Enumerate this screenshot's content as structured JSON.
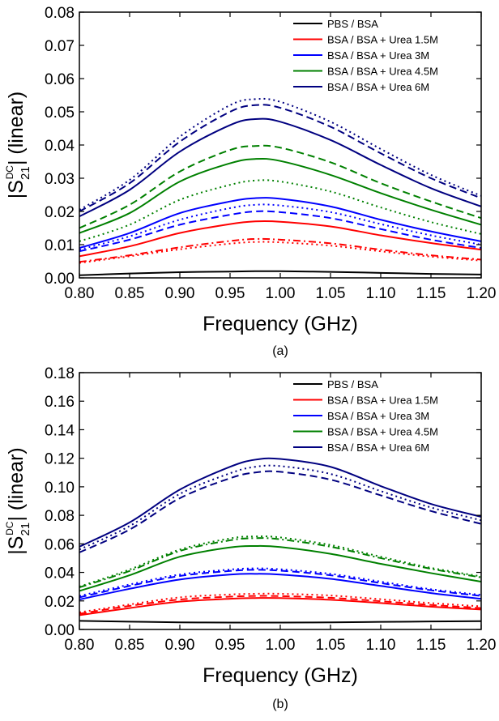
{
  "chart_data": [
    {
      "type": "line",
      "panel_label": "(a)",
      "title": "",
      "xlabel": "Frequency (GHz)",
      "ylabel": "|S21DC| (linear)",
      "ylabel_parts": {
        "pre": "|S",
        "sub": "21",
        "sup": "DC",
        "post": "| (linear)"
      },
      "xlim": [
        0.8,
        1.2
      ],
      "ylim": [
        0.0,
        0.08
      ],
      "x_ticks": [
        "0.80",
        "0.85",
        "0.90",
        "0.95",
        "1.00",
        "1.05",
        "1.10",
        "1.15",
        "1.20"
      ],
      "y_ticks": [
        "0.00",
        "0.01",
        "0.02",
        "0.03",
        "0.04",
        "0.05",
        "0.06",
        "0.07",
        "0.08"
      ],
      "grid": false,
      "legend_position": "top-right",
      "legend": [
        {
          "label": "PBS / BSA",
          "color": "#000000"
        },
        {
          "label": "BSA / BSA + Urea 1.5M",
          "color": "#ff0000"
        },
        {
          "label": "BSA / BSA + Urea 3M",
          "color": "#0000ff"
        },
        {
          "label": "BSA / BSA + Urea 4.5M",
          "color": "#008000"
        },
        {
          "label": "BSA / BSA + Urea 6M",
          "color": "#000080"
        }
      ],
      "x": [
        0.8,
        0.85,
        0.9,
        0.95,
        0.975,
        1.0,
        1.05,
        1.1,
        1.15,
        1.2
      ],
      "series": [
        {
          "color": "#000000",
          "style": "solid",
          "values": [
            0.0008,
            0.0013,
            0.0017,
            0.0019,
            0.002,
            0.002,
            0.0018,
            0.0015,
            0.0012,
            0.001
          ]
        },
        {
          "color": "#ff0000",
          "style": "solid",
          "values": [
            0.0065,
            0.0095,
            0.0135,
            0.0162,
            0.017,
            0.0169,
            0.0155,
            0.0128,
            0.0105,
            0.0085
          ]
        },
        {
          "color": "#ff0000",
          "style": "dashdot",
          "values": [
            0.0048,
            0.0068,
            0.0092,
            0.0111,
            0.0117,
            0.0115,
            0.0104,
            0.0085,
            0.0068,
            0.0055
          ]
        },
        {
          "color": "#ff0000",
          "style": "dotted",
          "values": [
            0.0045,
            0.0065,
            0.0086,
            0.0103,
            0.0108,
            0.0107,
            0.0097,
            0.008,
            0.0064,
            0.0052
          ]
        },
        {
          "color": "#0000ff",
          "style": "solid",
          "values": [
            0.009,
            0.0135,
            0.0195,
            0.023,
            0.024,
            0.0238,
            0.0215,
            0.0175,
            0.014,
            0.011
          ]
        },
        {
          "color": "#0000ff",
          "style": "dashed",
          "values": [
            0.008,
            0.0115,
            0.016,
            0.019,
            0.02,
            0.0198,
            0.018,
            0.0147,
            0.0115,
            0.009
          ]
        },
        {
          "color": "#0000ff",
          "style": "dotted",
          "values": [
            0.0085,
            0.0125,
            0.0175,
            0.021,
            0.022,
            0.0218,
            0.0198,
            0.0162,
            0.0128,
            0.01
          ]
        },
        {
          "color": "#008000",
          "style": "solid",
          "values": [
            0.0135,
            0.0195,
            0.029,
            0.0345,
            0.0358,
            0.0352,
            0.031,
            0.0255,
            0.0205,
            0.016
          ]
        },
        {
          "color": "#008000",
          "style": "dashed",
          "values": [
            0.015,
            0.022,
            0.032,
            0.0385,
            0.0397,
            0.0392,
            0.0348,
            0.0285,
            0.023,
            0.018
          ]
        },
        {
          "color": "#008000",
          "style": "dotted",
          "values": [
            0.011,
            0.016,
            0.0235,
            0.028,
            0.0293,
            0.029,
            0.026,
            0.0212,
            0.0168,
            0.0132
          ]
        },
        {
          "color": "#000080",
          "style": "solid",
          "values": [
            0.0185,
            0.0265,
            0.038,
            0.046,
            0.0478,
            0.047,
            0.0415,
            0.034,
            0.027,
            0.0215
          ]
        },
        {
          "color": "#000080",
          "style": "dashed",
          "values": [
            0.02,
            0.0285,
            0.041,
            0.05,
            0.052,
            0.0512,
            0.0455,
            0.0375,
            0.03,
            0.024
          ]
        },
        {
          "color": "#000080",
          "style": "dotted",
          "values": [
            0.0205,
            0.0295,
            0.0425,
            0.052,
            0.0538,
            0.053,
            0.047,
            0.0388,
            0.031,
            0.0247
          ]
        }
      ]
    },
    {
      "type": "line",
      "panel_label": "(b)",
      "title": "",
      "xlabel": "Frequency (GHz)",
      "ylabel": "|S21DC| (linear)",
      "ylabel_parts": {
        "pre": "|S",
        "sub": "21",
        "sup": "DC",
        "post": "| (linear)"
      },
      "xlim": [
        0.8,
        1.2
      ],
      "ylim": [
        0.0,
        0.18
      ],
      "x_ticks": [
        "0.80",
        "0.85",
        "0.90",
        "0.95",
        "1.00",
        "1.05",
        "1.10",
        "1.15",
        "1.20"
      ],
      "y_ticks": [
        "0.00",
        "0.02",
        "0.04",
        "0.06",
        "0.08",
        "0.10",
        "0.12",
        "0.14",
        "0.16",
        "0.18"
      ],
      "grid": false,
      "legend_position": "top-right",
      "legend": [
        {
          "label": "PBS / BSA",
          "color": "#000000"
        },
        {
          "label": "BSA / BSA + Urea 1.5M",
          "color": "#ff0000"
        },
        {
          "label": "BSA / BSA + Urea 3M",
          "color": "#0000ff"
        },
        {
          "label": "BSA / BSA + Urea 4.5M",
          "color": "#008000"
        },
        {
          "label": "BSA / BSA + Urea 6M",
          "color": "#000080"
        }
      ],
      "x": [
        0.8,
        0.85,
        0.9,
        0.95,
        0.975,
        1.0,
        1.05,
        1.1,
        1.15,
        1.2
      ],
      "series": [
        {
          "color": "#000000",
          "style": "solid",
          "values": [
            0.006,
            0.0055,
            0.005,
            0.0048,
            0.0048,
            0.0048,
            0.005,
            0.0053,
            0.0056,
            0.0058
          ]
        },
        {
          "color": "#ff0000",
          "style": "solid",
          "values": [
            0.01,
            0.015,
            0.0195,
            0.0215,
            0.022,
            0.022,
            0.0208,
            0.0185,
            0.016,
            0.014
          ]
        },
        {
          "color": "#ff0000",
          "style": "dashed",
          "values": [
            0.011,
            0.0165,
            0.021,
            0.023,
            0.0235,
            0.0234,
            0.0222,
            0.0198,
            0.0172,
            0.015
          ]
        },
        {
          "color": "#ff0000",
          "style": "dotted",
          "values": [
            0.012,
            0.0175,
            0.0225,
            0.0245,
            0.025,
            0.025,
            0.0238,
            0.0212,
            0.0185,
            0.0162
          ]
        },
        {
          "color": "#0000ff",
          "style": "solid",
          "values": [
            0.021,
            0.0285,
            0.035,
            0.0385,
            0.039,
            0.0385,
            0.0355,
            0.0305,
            0.0255,
            0.0215
          ]
        },
        {
          "color": "#0000ff",
          "style": "dashed",
          "values": [
            0.0225,
            0.0305,
            0.0375,
            0.041,
            0.0418,
            0.0412,
            0.038,
            0.0325,
            0.0275,
            0.0235
          ]
        },
        {
          "color": "#0000ff",
          "style": "dotted",
          "values": [
            0.0235,
            0.0315,
            0.0385,
            0.042,
            0.0428,
            0.0422,
            0.039,
            0.0335,
            0.0282,
            0.0242
          ]
        },
        {
          "color": "#008000",
          "style": "solid",
          "values": [
            0.027,
            0.038,
            0.051,
            0.0575,
            0.0585,
            0.0578,
            0.053,
            0.046,
            0.0395,
            0.0335
          ]
        },
        {
          "color": "#008000",
          "style": "dashdot",
          "values": [
            0.0295,
            0.041,
            0.055,
            0.0625,
            0.064,
            0.0632,
            0.058,
            0.05,
            0.0425,
            0.0365
          ]
        },
        {
          "color": "#008000",
          "style": "dotted",
          "values": [
            0.03,
            0.042,
            0.056,
            0.0638,
            0.0652,
            0.0645,
            0.0592,
            0.051,
            0.0432,
            0.0372
          ]
        },
        {
          "color": "#000080",
          "style": "solid",
          "values": [
            0.058,
            0.075,
            0.098,
            0.114,
            0.119,
            0.1195,
            0.114,
            0.1005,
            0.088,
            0.079
          ]
        },
        {
          "color": "#000080",
          "style": "dashed",
          "values": [
            0.054,
            0.07,
            0.092,
            0.106,
            0.11,
            0.1105,
            0.105,
            0.094,
            0.083,
            0.074
          ]
        },
        {
          "color": "#000080",
          "style": "dotted",
          "values": [
            0.056,
            0.0725,
            0.095,
            0.1095,
            0.114,
            0.1145,
            0.109,
            0.097,
            0.0855,
            0.0765
          ]
        }
      ]
    }
  ]
}
